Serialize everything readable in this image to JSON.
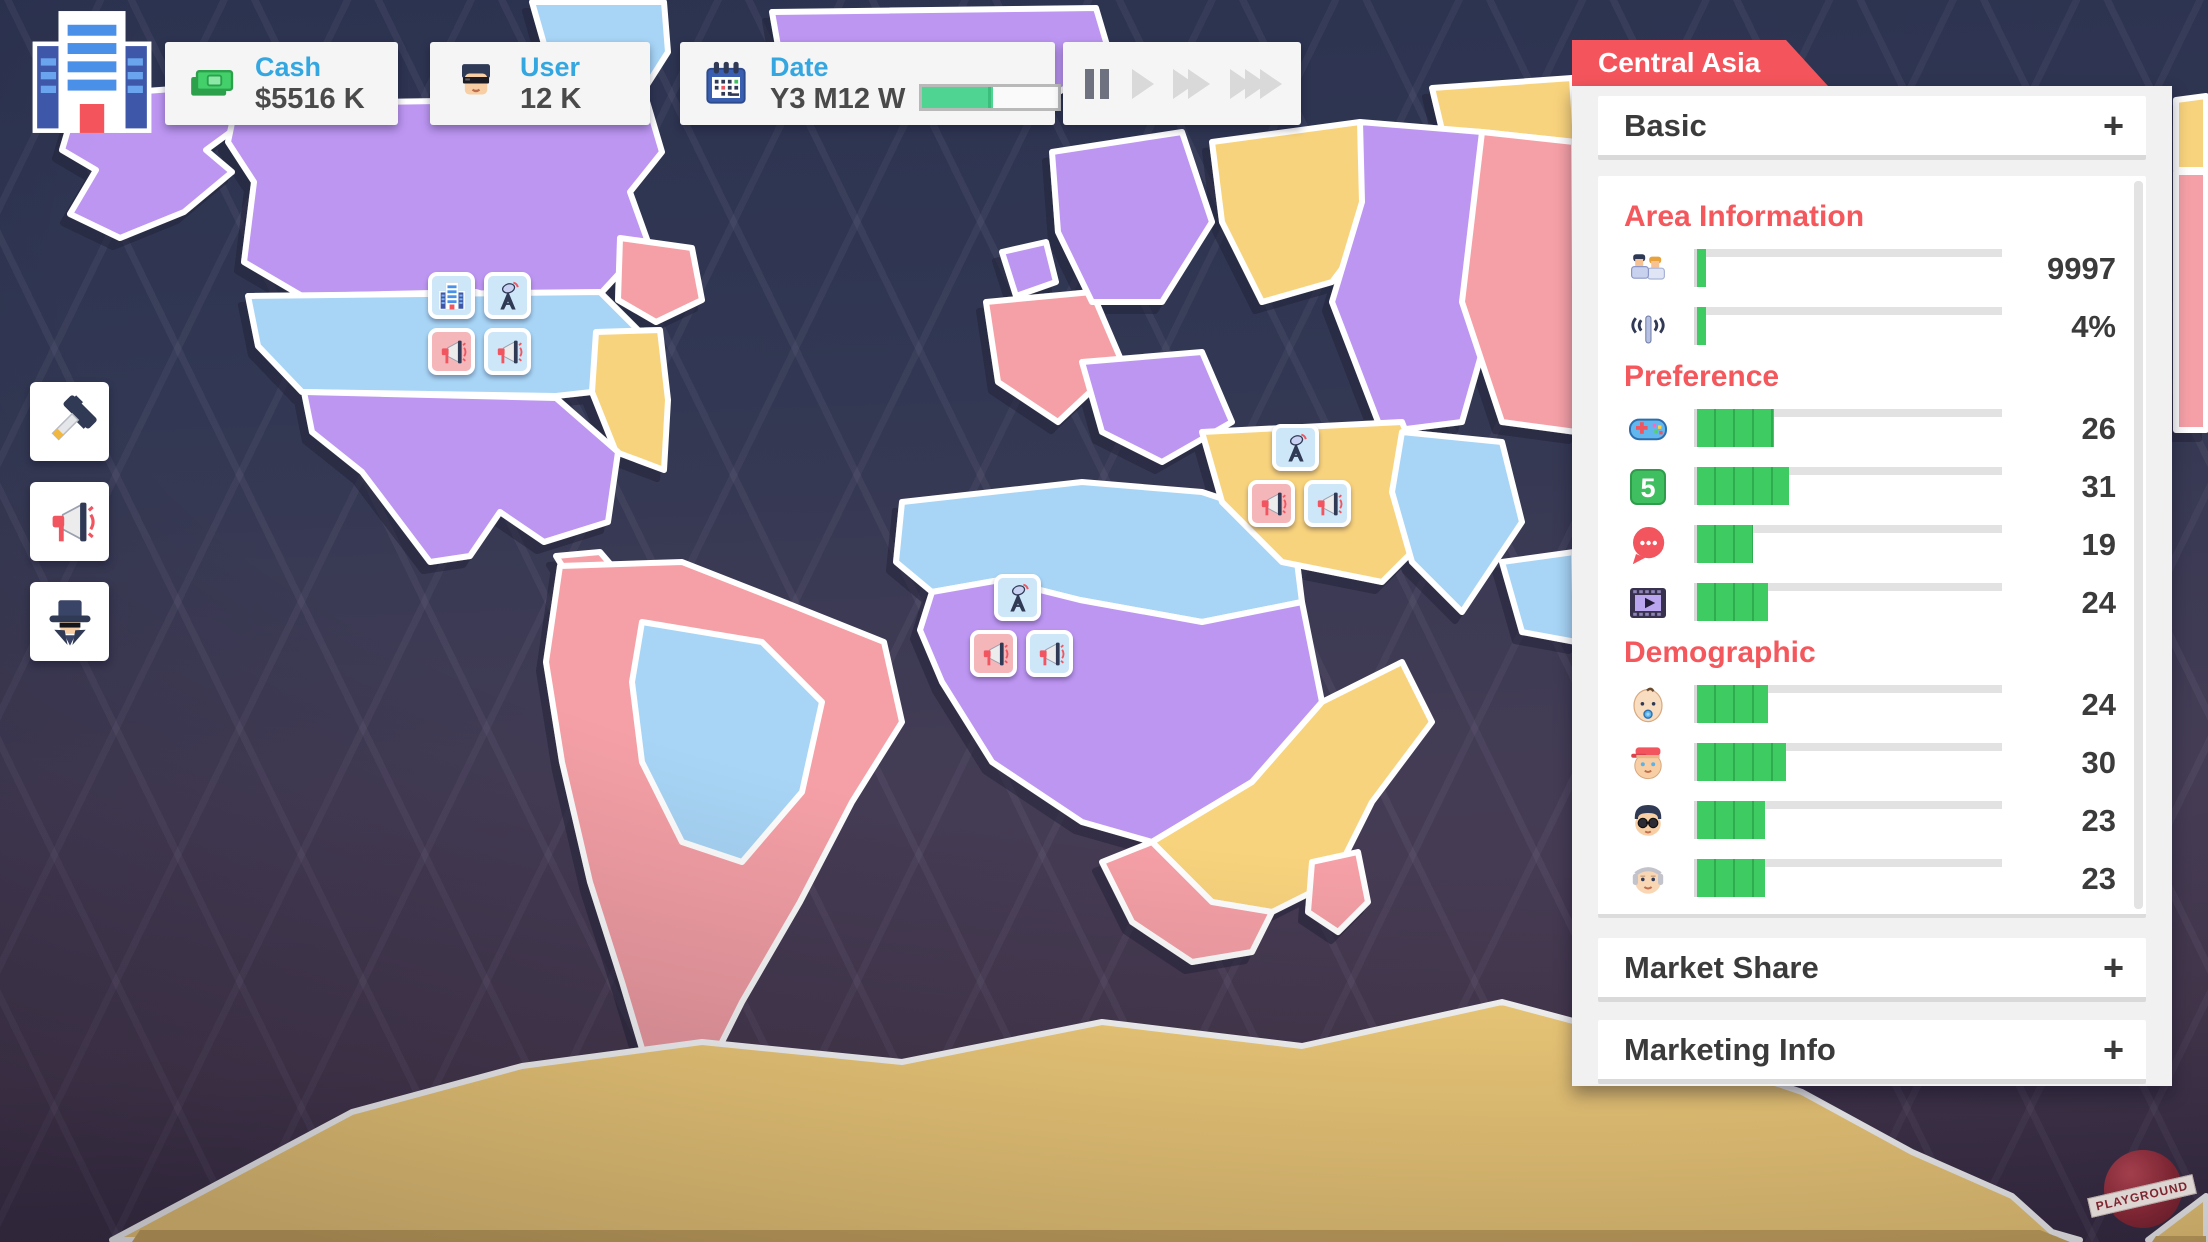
{
  "hud": {
    "cash": {
      "label": "Cash",
      "value": "$5516 K",
      "icon": "money-icon"
    },
    "user": {
      "label": "User",
      "value": "12 K",
      "icon": "user-face-icon"
    },
    "date": {
      "label": "Date",
      "value": "Y3 M12 W",
      "icon": "calendar-icon",
      "progress_pct": 52
    },
    "playback": {
      "buttons": [
        {
          "icon": "pause-icon",
          "active": true
        },
        {
          "icon": "play-icon",
          "active": false
        },
        {
          "icon": "fast-forward-icon",
          "active": false
        },
        {
          "icon": "fastest-forward-icon",
          "active": false
        }
      ]
    }
  },
  "side_tools": [
    {
      "icon": "hammer-icon"
    },
    {
      "icon": "megaphone-icon"
    },
    {
      "icon": "spy-icon"
    }
  ],
  "map_structures": [
    {
      "area": "north-america",
      "tiles": [
        "office-icon",
        "antenna-tower-icon",
        "megaphone-icon",
        "megaphone-icon"
      ]
    },
    {
      "area": "middle-east",
      "tiles": [
        "antenna-tower-icon",
        "megaphone-icon",
        "megaphone-icon"
      ]
    },
    {
      "area": "africa",
      "tiles": [
        "antenna-tower-icon",
        "megaphone-icon",
        "megaphone-icon"
      ]
    }
  ],
  "panel": {
    "title": "Central Asia",
    "basic": {
      "label": "Basic",
      "toggle": "+"
    },
    "market_share": {
      "label": "Market Share",
      "toggle": "+"
    },
    "marketing_info": {
      "label": "Marketing Info",
      "toggle": "+"
    },
    "sections": [
      {
        "heading": "Area Information",
        "rows": [
          {
            "icon": "population-icon",
            "symbol": "sym-people",
            "value": "9997",
            "fill_pct": 4
          },
          {
            "icon": "coverage-icon",
            "symbol": "sym-antenna",
            "value": "4%",
            "fill_pct": 4
          }
        ]
      },
      {
        "heading": "Preference",
        "rows": [
          {
            "icon": "game-icon",
            "symbol": "sym-gamepad",
            "value": "26",
            "fill_pct": 26
          },
          {
            "icon": "sns-icon",
            "symbol": "sym-sns",
            "value": "31",
            "fill_pct": 31
          },
          {
            "icon": "chat-icon",
            "symbol": "sym-chat",
            "value": "19",
            "fill_pct": 19
          },
          {
            "icon": "video-icon",
            "symbol": "sym-film",
            "value": "24",
            "fill_pct": 24
          }
        ]
      },
      {
        "heading": "Demographic",
        "rows": [
          {
            "icon": "baby-icon",
            "symbol": "sym-baby",
            "value": "24",
            "fill_pct": 24
          },
          {
            "icon": "teen-icon",
            "symbol": "sym-teen",
            "value": "30",
            "fill_pct": 30
          },
          {
            "icon": "adult-icon",
            "symbol": "sym-adult",
            "value": "23",
            "fill_pct": 23
          },
          {
            "icon": "senior-icon",
            "symbol": "sym-senior",
            "value": "23",
            "fill_pct": 23
          }
        ]
      }
    ]
  },
  "watermark": "PLAYGROUND",
  "colors": {
    "accent_red": "#f4555c",
    "bar_green": "#3ecb62",
    "label_blue": "#35a7e0",
    "land_purple": "#bd96f2",
    "land_blue": "#a8d5f6",
    "land_pink": "#f5a0a6",
    "land_yellow": "#f8d37d"
  }
}
